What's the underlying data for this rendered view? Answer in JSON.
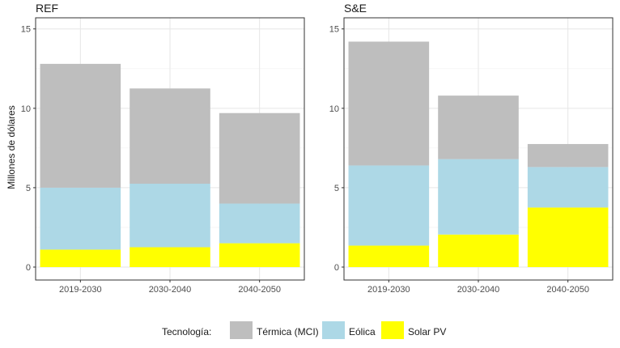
{
  "chart_data": {
    "type": "bar",
    "stacked": true,
    "ylabel": "Millones de dólares",
    "ylim": [
      0,
      15
    ],
    "yticks": [
      0,
      5,
      10,
      15
    ],
    "grid": true,
    "legend": {
      "title": "Tecnología:",
      "position": "bottom",
      "entries": [
        {
          "name": "Térmica (MCI)",
          "color": "#bebebe"
        },
        {
          "name": "Eólica",
          "color": "#add8e6"
        },
        {
          "name": "Solar PV",
          "color": "#ffff00"
        }
      ]
    },
    "panels": [
      {
        "title": "REF",
        "categories": [
          "2019-2030",
          "2030-2040",
          "2040-2050"
        ],
        "series": [
          {
            "name": "Solar PV",
            "color": "#ffff00",
            "values": [
              1.1,
              1.25,
              1.5
            ]
          },
          {
            "name": "Eólica",
            "color": "#add8e6",
            "values": [
              3.9,
              4.0,
              2.5
            ]
          },
          {
            "name": "Térmica (MCI)",
            "color": "#bebebe",
            "values": [
              7.8,
              6.0,
              5.7
            ]
          }
        ]
      },
      {
        "title": "S&E",
        "categories": [
          "2019-2030",
          "2030-2040",
          "2040-2050"
        ],
        "series": [
          {
            "name": "Solar PV",
            "color": "#ffff00",
            "values": [
              1.35,
              2.05,
              3.75
            ]
          },
          {
            "name": "Eólica",
            "color": "#add8e6",
            "values": [
              5.05,
              4.75,
              2.55
            ]
          },
          {
            "name": "Térmica (MCI)",
            "color": "#bebebe",
            "values": [
              7.8,
              4.0,
              1.45
            ]
          }
        ]
      }
    ]
  }
}
